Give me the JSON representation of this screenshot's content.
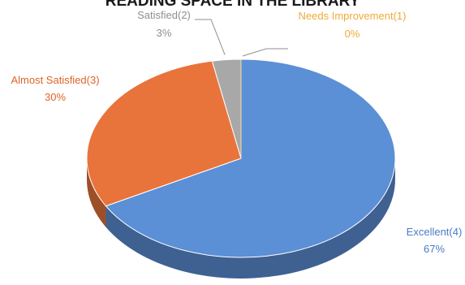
{
  "chart_data": {
    "type": "pie",
    "title": "READING SPACE IN THE LIBRARY",
    "slices": [
      {
        "label": "Excellent(4)",
        "percent": "67%",
        "value": 67,
        "color": "#5b8fd6"
      },
      {
        "label": "Almost Satisfied(3)",
        "percent": "30%",
        "value": 30,
        "color": "#e8743b"
      },
      {
        "label": "Satisfied(2)",
        "percent": "3%",
        "value": 3,
        "color": "#a8a8a8"
      },
      {
        "label": "Needs Improvement(1)",
        "percent": "0%",
        "value": 0,
        "color": "#f2b84b"
      }
    ],
    "legend": "none"
  }
}
